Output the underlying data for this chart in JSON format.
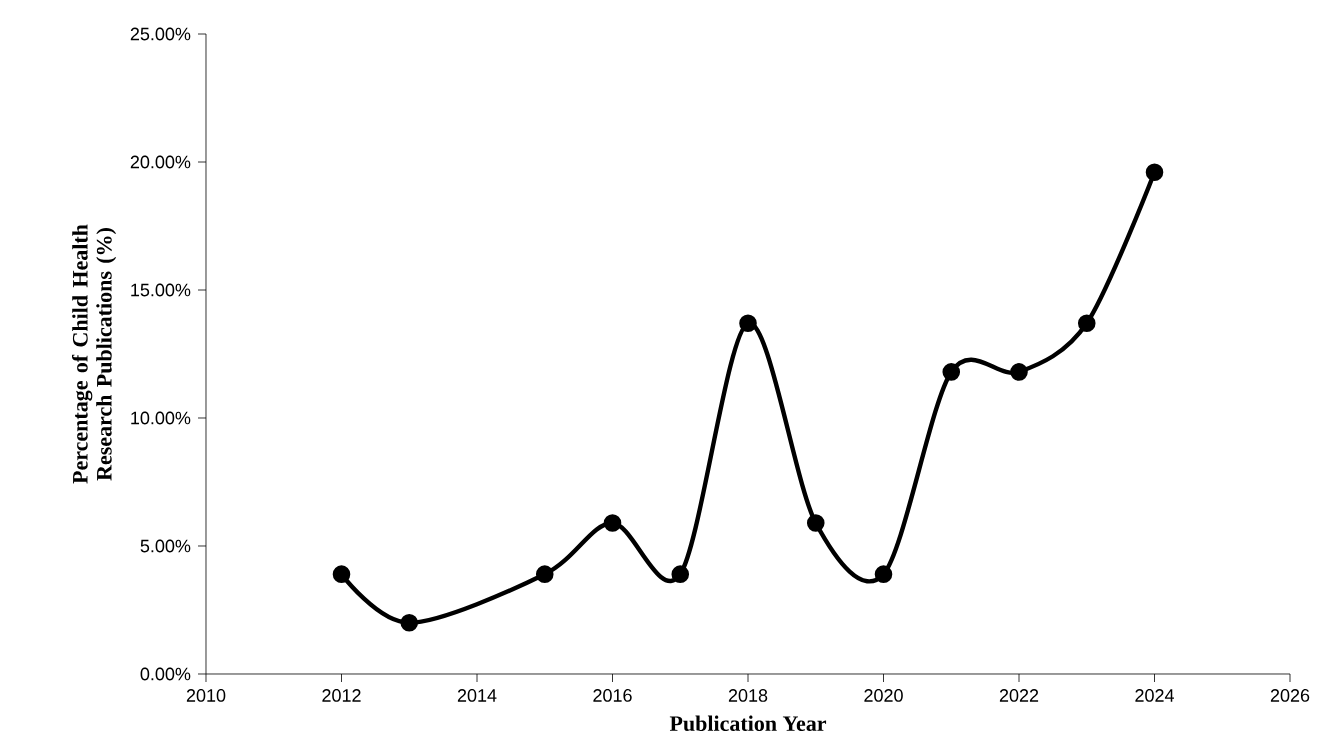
{
  "chart_data": {
    "type": "line",
    "xlabel": "Publication Year",
    "ylabel": "Percentage of Child Health Research Publications (%)",
    "x": [
      2012,
      2013,
      2015,
      2016,
      2017,
      2018,
      2019,
      2020,
      2021,
      2022,
      2023,
      2024
    ],
    "series": [
      {
        "color": "#000000",
        "values": [
          3.9,
          2.0,
          3.9,
          5.9,
          3.9,
          13.7,
          5.9,
          3.9,
          11.8,
          11.8,
          13.7,
          19.6
        ]
      }
    ],
    "xlim": [
      2010,
      2026
    ],
    "xticks": [
      2010,
      2012,
      2014,
      2016,
      2018,
      2020,
      2022,
      2024,
      2026
    ],
    "ylim": [
      0,
      25
    ],
    "yticks": [
      {
        "value": 0,
        "label": "0.00%"
      },
      {
        "value": 5,
        "label": "5.00%"
      },
      {
        "value": 10,
        "label": "10.00%"
      },
      {
        "value": 15,
        "label": "15.00%"
      },
      {
        "value": 20,
        "label": "20.00%"
      },
      {
        "value": 25,
        "label": "25.00%"
      }
    ],
    "marker": "circle",
    "line_style": "solid",
    "grid": false
  }
}
